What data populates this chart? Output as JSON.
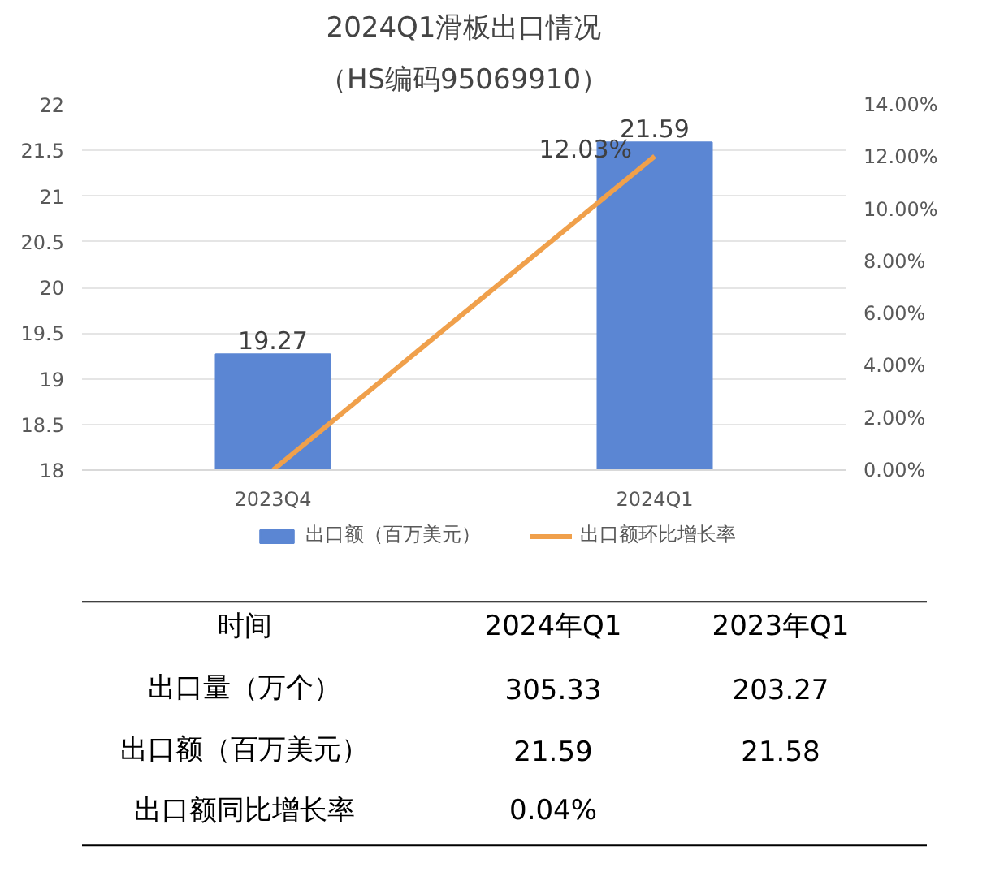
{
  "chart_data": {
    "type": "bar",
    "title": "2024Q1滑板出口情况",
    "subtitle": "（HS编码95069910）",
    "categories": [
      "2023Q4",
      "2024Q1"
    ],
    "series": [
      {
        "name": "出口额（百万美元）",
        "color": "#5b86d3",
        "values": [
          19.27,
          21.59
        ],
        "value_labels": [
          "19.27",
          "21.59"
        ]
      },
      {
        "name": "出口额环比增长率",
        "type": "line",
        "axis": "y2",
        "color": "#f0a04b",
        "values": [
          0,
          12.03
        ],
        "value_labels": [
          null,
          "12.03%"
        ]
      }
    ],
    "ylim": [
      18,
      22
    ],
    "yticks": [
      18,
      18.5,
      19,
      19.5,
      20,
      20.5,
      21,
      21.5,
      22
    ],
    "y2lim": [
      0,
      14
    ],
    "y2ticks": [
      {
        "value": 0,
        "label": "0.00%"
      },
      {
        "value": 2,
        "label": "2.00%"
      },
      {
        "value": 4,
        "label": "4.00%"
      },
      {
        "value": 6,
        "label": "6.00%"
      },
      {
        "value": 8,
        "label": "8.00%"
      },
      {
        "value": 10,
        "label": "10.00%"
      },
      {
        "value": 12,
        "label": "12.00%"
      },
      {
        "value": 14,
        "label": "14.00%"
      }
    ],
    "grid": "y",
    "legend": "bottom",
    "annotations": [
      "时间",
      "2024年Q1",
      "2023年Q1",
      "出口量（万个）",
      "305.33",
      "203.27",
      "出口额（百万美元）",
      "21.59",
      "21.58",
      "出口额同比增长率",
      "0.04%"
    ]
  }
}
